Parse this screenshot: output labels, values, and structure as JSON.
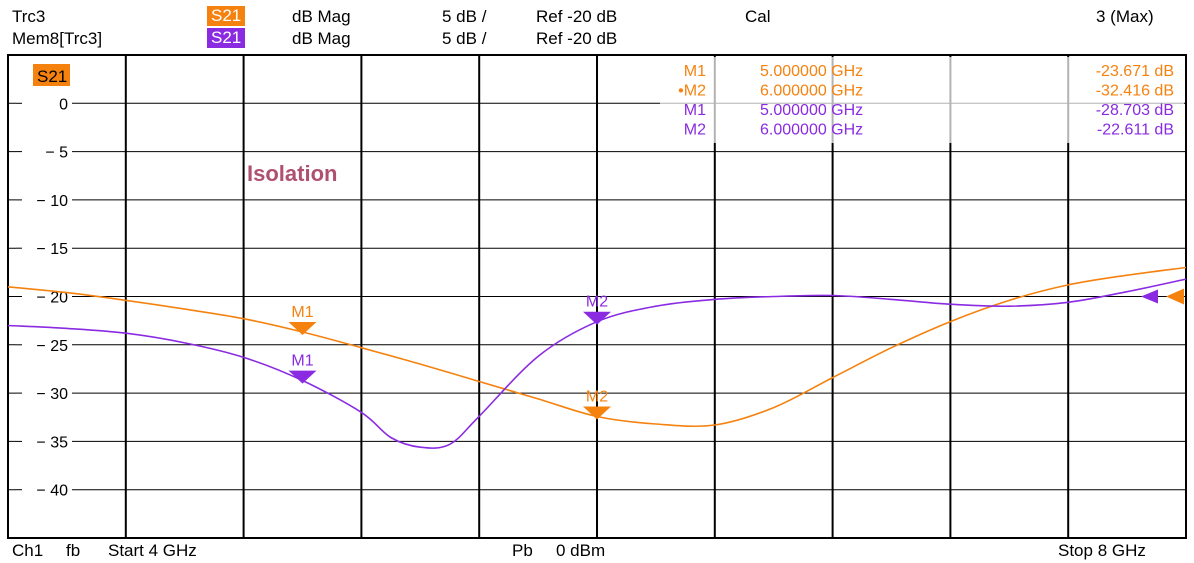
{
  "header": {
    "row1": {
      "trace": "Trc3",
      "param": "S21",
      "format": "dB Mag",
      "scale": "5 dB /",
      "ref": "Ref -20 dB",
      "cal": "Cal",
      "right": "3 (Max)"
    },
    "row2": {
      "trace": "Mem8[Trc3]",
      "param": "S21",
      "format": "dB Mag",
      "scale": "5 dB /",
      "ref": "Ref -20 dB"
    }
  },
  "diagram": {
    "trace_label": "S21",
    "annotation": "Isolation"
  },
  "markers_table": [
    {
      "name": "M1",
      "active": false,
      "freq": "5.000000 GHz",
      "value": "-23.671 dB",
      "color": "#f5820f"
    },
    {
      "name": "M2",
      "active": true,
      "freq": "6.000000 GHz",
      "value": "-32.416 dB",
      "color": "#f5820f"
    },
    {
      "name": "M1",
      "active": false,
      "freq": "5.000000 GHz",
      "value": "-28.703 dB",
      "color": "#8a2be2"
    },
    {
      "name": "M2",
      "active": false,
      "freq": "6.000000 GHz",
      "value": "-22.611 dB",
      "color": "#8a2be2"
    }
  ],
  "footer": {
    "channel": "Ch1",
    "mode": "fb",
    "start": "Start 4 GHz",
    "power_label": "Pb",
    "power": "0 dBm",
    "stop": "Stop 8 GHz"
  },
  "colors": {
    "trc3": "#f5820f",
    "mem8": "#8a2be2",
    "annotation": "#b05070"
  },
  "chart_data": {
    "type": "line",
    "x_unit": "GHz",
    "y_unit": "dB",
    "xlim": [
      4,
      8
    ],
    "ylim": [
      -45,
      5
    ],
    "y_ticks": [
      0,
      -5,
      -10,
      -15,
      -20,
      -25,
      -30,
      -35,
      -40
    ],
    "reference_level": -20,
    "grid": true,
    "series": [
      {
        "name": "Trc3",
        "x": [
          4.0,
          4.2,
          4.4,
          4.6,
          4.8,
          5.0,
          5.2,
          5.4,
          5.6,
          5.8,
          6.0,
          6.2,
          6.4,
          6.6,
          6.8,
          7.0,
          7.2,
          7.4,
          7.6,
          7.8,
          8.0
        ],
        "y": [
          -19.0,
          -19.6,
          -20.4,
          -21.3,
          -22.3,
          -23.67,
          -25.3,
          -27.0,
          -28.8,
          -30.6,
          -32.42,
          -33.2,
          -33.3,
          -31.5,
          -28.4,
          -25.3,
          -22.6,
          -20.4,
          -18.8,
          -17.8,
          -17.0
        ],
        "markers": [
          {
            "name": "M1",
            "x": 5.0,
            "y": -23.671
          },
          {
            "name": "M2",
            "x": 6.0,
            "y": -32.416
          }
        ]
      },
      {
        "name": "Mem8[Trc3]",
        "x": [
          4.0,
          4.2,
          4.4,
          4.6,
          4.8,
          5.0,
          5.2,
          5.3,
          5.4,
          5.5,
          5.6,
          5.8,
          6.0,
          6.2,
          6.4,
          6.6,
          6.8,
          7.0,
          7.2,
          7.4,
          7.6,
          7.8,
          8.0
        ],
        "y": [
          -23.0,
          -23.3,
          -23.8,
          -24.8,
          -26.3,
          -28.7,
          -32.0,
          -34.6,
          -35.6,
          -35.3,
          -32.4,
          -26.2,
          -22.61,
          -21.0,
          -20.3,
          -20.0,
          -19.9,
          -20.3,
          -20.8,
          -21.0,
          -20.6,
          -19.5,
          -18.2
        ],
        "markers": [
          {
            "name": "M1",
            "x": 5.0,
            "y": -28.703
          },
          {
            "name": "M2",
            "x": 6.0,
            "y": -22.611
          }
        ]
      }
    ]
  }
}
